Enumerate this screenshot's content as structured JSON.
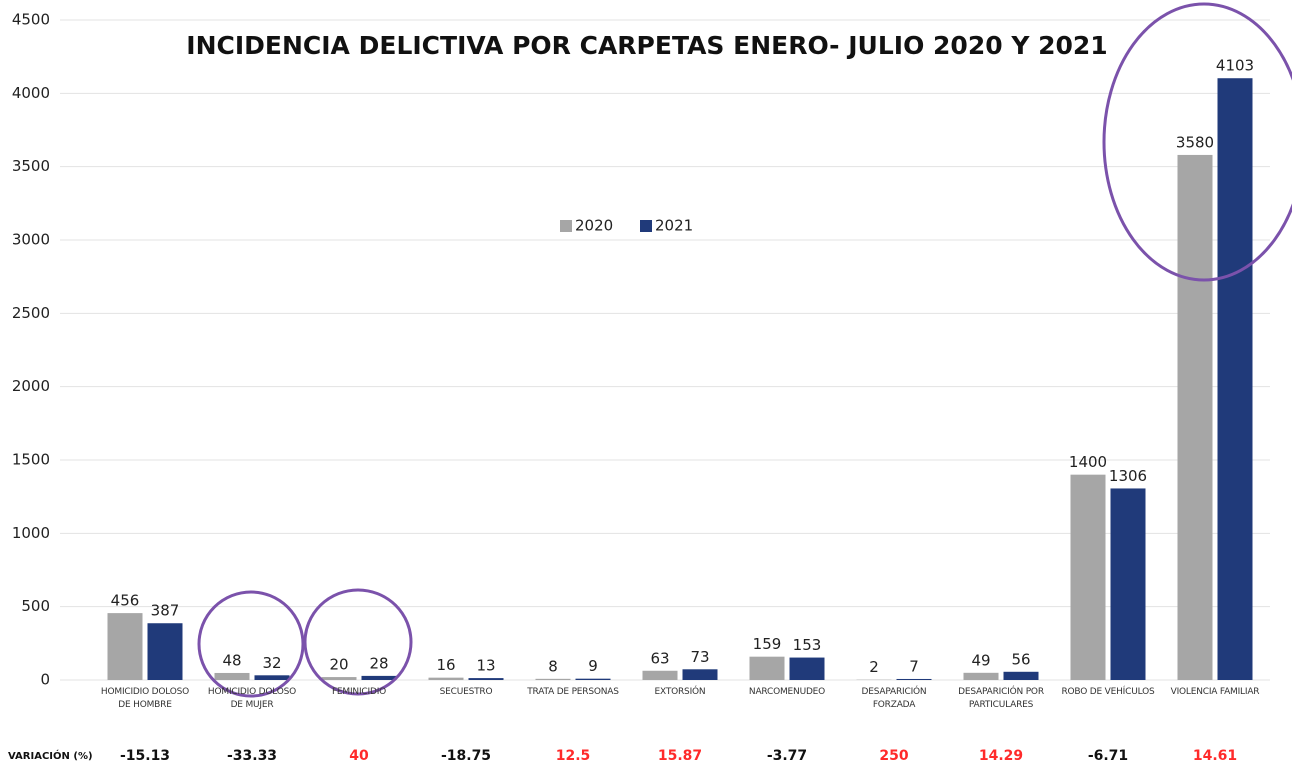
{
  "chart_data": {
    "type": "bar",
    "title": "INCIDENCIA DELICTIVA POR CARPETAS ENERO- JULIO 2020 Y 2021",
    "categories": [
      "HOMICIDIO DOLOSO DE HOMBRE",
      "HOMICIDIO DOLOSO DE MUJER",
      "FEMINICIDIO",
      "SECUESTRO",
      "TRATA DE PERSONAS",
      "EXTORSIÓN",
      "NARCOMENUDEO",
      "DESAPARICIÓN FORZADA",
      "DESAPARICIÓN POR PARTICULARES",
      "ROBO DE VEHÍCULOS",
      "VIOLENCIA FAMILIAR"
    ],
    "series": [
      {
        "name": "2020",
        "color": "#a6a6a6",
        "values": [
          456,
          48,
          20,
          16,
          8,
          63,
          159,
          2,
          49,
          1400,
          3580
        ]
      },
      {
        "name": "2021",
        "color": "#203a7a",
        "values": [
          387,
          32,
          28,
          13,
          9,
          73,
          153,
          7,
          56,
          1306,
          4103
        ]
      }
    ],
    "ylim": [
      0,
      4500
    ],
    "yticks": [
      0,
      500,
      1000,
      1500,
      2000,
      2500,
      3000,
      3500,
      4000,
      4500
    ],
    "grid": true,
    "variation_label": "VARIACIÓN (%)",
    "variation": [
      -15.13,
      -33.33,
      40,
      -18.75,
      12.5,
      15.87,
      -3.77,
      250,
      14.29,
      -6.71,
      14.61
    ]
  }
}
